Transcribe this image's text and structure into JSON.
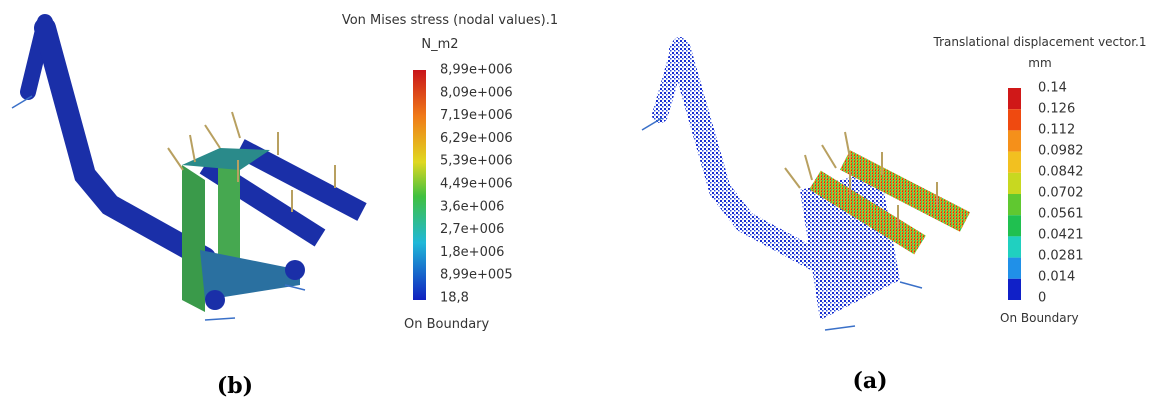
{
  "left_panel": {
    "legend_title": "Von Mises stress (nodal values).1",
    "unit": "N_m2",
    "legend_labels": [
      "8,99e+006",
      "8,09e+006",
      "7,19e+006",
      "6,29e+006",
      "5,39e+006",
      "4,49e+006",
      "3,6e+006",
      "2,7e+006",
      "1,8e+006",
      "8,99e+005",
      "18,8"
    ],
    "footer": "On Boundary",
    "caption": "(b)"
  },
  "right_panel": {
    "legend_title": "Translational displacement vector.1",
    "unit": "mm",
    "legend_labels": [
      "0.14",
      "0.126",
      "0.112",
      "0.0982",
      "0.0842",
      "0.0702",
      "0.0561",
      "0.0421",
      "0.0281",
      "0.014",
      "0"
    ],
    "footer": "On Boundary",
    "caption": "(a)"
  }
}
